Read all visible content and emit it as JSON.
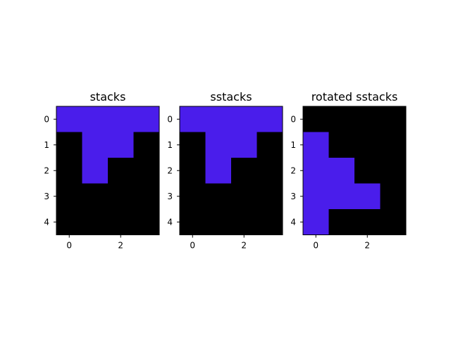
{
  "colors": {
    "zero": "#000000",
    "one": "#4a1deb",
    "axis": "#000000"
  },
  "chart_data": [
    {
      "type": "heatmap",
      "title": "stacks",
      "xticks": [
        0,
        2
      ],
      "yticks": [
        0,
        1,
        2,
        3,
        4
      ],
      "grid": false,
      "rows": [
        [
          1,
          1,
          1,
          1
        ],
        [
          0,
          1,
          1,
          0
        ],
        [
          0,
          1,
          0,
          0
        ],
        [
          0,
          0,
          0,
          0
        ],
        [
          0,
          0,
          0,
          0
        ]
      ]
    },
    {
      "type": "heatmap",
      "title": "sstacks",
      "xticks": [
        0,
        2
      ],
      "yticks": [
        0,
        1,
        2,
        3,
        4
      ],
      "grid": false,
      "rows": [
        [
          1,
          1,
          1,
          1
        ],
        [
          0,
          1,
          1,
          0
        ],
        [
          0,
          1,
          0,
          0
        ],
        [
          0,
          0,
          0,
          0
        ],
        [
          0,
          0,
          0,
          0
        ]
      ]
    },
    {
      "type": "heatmap",
      "title": "rotated sstacks",
      "xticks": [
        0,
        2
      ],
      "yticks": [
        0,
        1,
        2,
        3,
        4
      ],
      "grid": false,
      "rows": [
        [
          0,
          0,
          0,
          0
        ],
        [
          1,
          0,
          0,
          0
        ],
        [
          1,
          1,
          0,
          0
        ],
        [
          1,
          1,
          1,
          0
        ],
        [
          1,
          0,
          0,
          0
        ]
      ]
    }
  ]
}
